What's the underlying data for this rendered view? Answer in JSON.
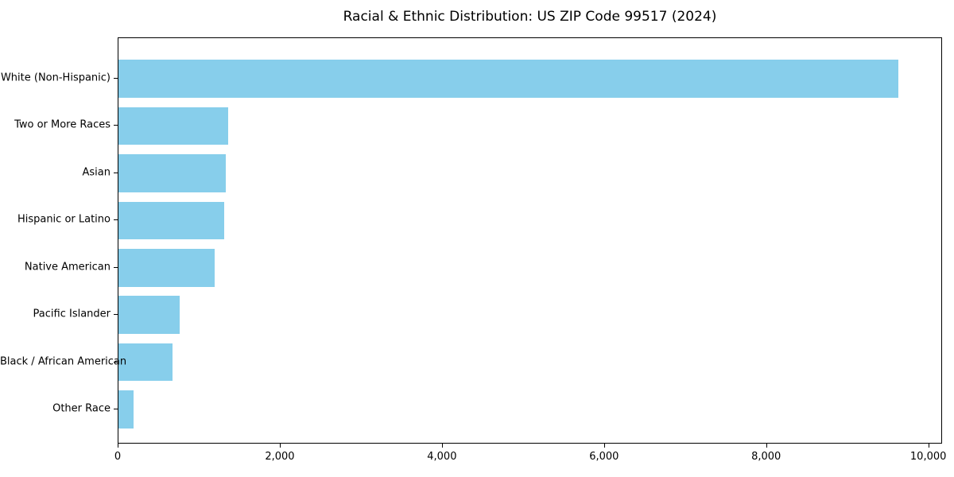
{
  "chart_data": {
    "type": "bar",
    "orientation": "horizontal",
    "title": "Racial & Ethnic Distribution: US ZIP Code 99517 (2024)",
    "categories": [
      "White (Non-Hispanic)",
      "Two or More Races",
      "Asian",
      "Hispanic or Latino",
      "Native American",
      "Pacific Islander",
      "Black / African American",
      "Other Race"
    ],
    "values": [
      9640,
      1355,
      1330,
      1310,
      1190,
      760,
      665,
      185
    ],
    "bar_color": "#87CEEB",
    "xlabel": "",
    "ylabel": "",
    "xlim": [
      0,
      10170
    ],
    "xticks": [
      0,
      2000,
      4000,
      6000,
      8000,
      10000
    ],
    "xticklabels": [
      "0",
      "2,000",
      "4,000",
      "6,000",
      "8,000",
      "10,000"
    ],
    "grid": false,
    "legend": null,
    "spine_color": "#000000",
    "text_color": "#000000"
  }
}
